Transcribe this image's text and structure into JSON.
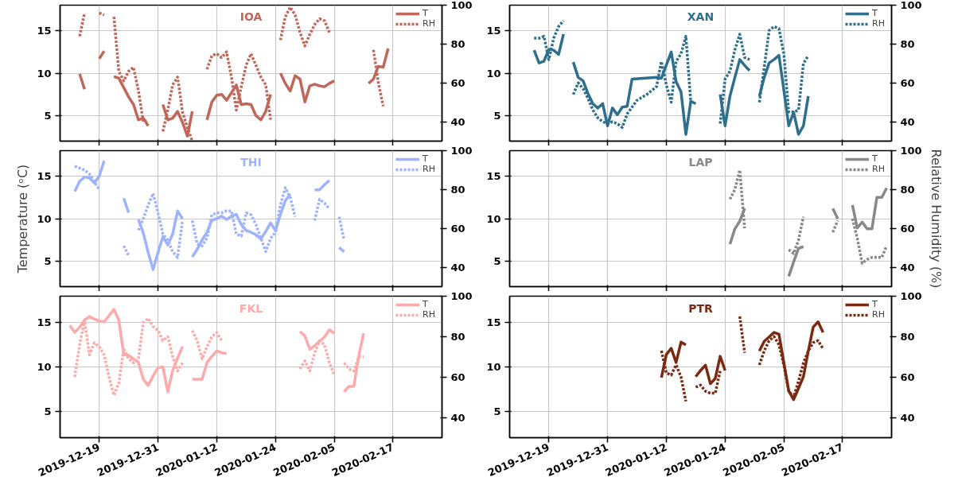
{
  "chart_data": [
    {
      "type": "line",
      "title": "IOA",
      "xlim": [
        "2019-12-11",
        "2020-02-27"
      ],
      "xticks": [
        "2019-12-19",
        "2019-12-31",
        "2020-01-12",
        "2020-01-24",
        "2020-02-05",
        "2020-02-17"
      ],
      "ylim": [
        2,
        18
      ],
      "yticks": [
        5,
        10,
        15
      ],
      "y2lim": [
        30,
        100
      ],
      "y2ticks": [
        40,
        60,
        80,
        100
      ],
      "grid": true,
      "legend": "top right",
      "tick_labels": "y",
      "series": [
        {
          "name": "T",
          "color": "#c0675a",
          "line_style": "solid",
          "x": [
            "2019-12-15",
            "2019-12-16",
            "2019-12-17",
            "2019-12-19",
            "2019-12-20",
            "2019-12-21",
            "2019-12-22",
            "2019-12-23",
            "2019-12-24",
            "2019-12-25",
            "2019-12-26",
            "2019-12-27",
            "2019-12-28",
            "2019-12-29",
            "2019-12-30",
            "2020-01-01",
            "2020-01-02",
            "2020-01-03",
            "2020-01-04",
            "2020-01-05",
            "2020-01-06",
            "2020-01-07",
            "2020-01-08",
            "2020-01-10",
            "2020-01-11",
            "2020-01-12",
            "2020-01-13",
            "2020-01-14",
            "2020-01-15",
            "2020-01-16",
            "2020-01-17",
            "2020-01-18",
            "2020-01-19",
            "2020-01-20",
            "2020-01-21",
            "2020-01-22",
            "2020-01-23",
            "2020-01-24",
            "2020-01-25",
            "2020-01-26",
            "2020-01-27",
            "2020-01-28",
            "2020-01-29",
            "2020-01-30",
            "2020-01-31",
            "2020-02-01",
            "2020-02-02",
            "2020-02-03",
            "2020-02-04",
            "2020-02-05",
            "2020-02-06",
            "2020-02-12",
            "2020-02-13",
            "2020-02-14",
            "2020-02-15",
            "2020-02-16"
          ],
          "values": [
            9.9,
            8.1,
            null,
            11.7,
            12.6,
            null,
            9.6,
            9.4,
            8.3,
            7.2,
            6.3,
            4.5,
            4.7,
            3.8,
            null,
            6.3,
            4.5,
            4.7,
            5.5,
            4.2,
            2.6,
            5.5,
            null,
            4.5,
            6.6,
            7.4,
            7.5,
            6.8,
            7.7,
            8.6,
            6.3,
            6.4,
            6.3,
            5.0,
            4.5,
            5.5,
            7.5,
            null,
            10,
            8.8,
            7.9,
            9.7,
            9.3,
            6.6,
            8.5,
            8.7,
            8.5,
            8.4,
            8.8,
            9.1,
            null,
            8.8,
            9.3,
            10.8,
            10.7,
            12.9
          ]
        },
        {
          "name": "RH",
          "color": "#c0675a",
          "line_style": "dotted",
          "axis": "y2",
          "x": [
            "2019-12-15",
            "2019-12-16",
            "2019-12-17",
            "2019-12-19",
            "2019-12-20",
            "2019-12-21",
            "2019-12-22",
            "2019-12-23",
            "2019-12-24",
            "2019-12-25",
            "2019-12-26",
            "2019-12-27",
            "2019-12-28",
            "2019-12-29",
            "2019-12-31",
            "2020-01-01",
            "2020-01-02",
            "2020-01-03",
            "2020-01-04",
            "2020-01-05",
            "2020-01-06",
            "2020-01-07",
            "2020-01-08",
            "2020-01-10",
            "2020-01-11",
            "2020-01-12",
            "2020-01-13",
            "2020-01-14",
            "2020-01-15",
            "2020-01-16",
            "2020-01-17",
            "2020-01-18",
            "2020-01-19",
            "2020-01-20",
            "2020-01-21",
            "2020-01-22",
            "2020-01-23",
            "2020-01-24",
            "2020-01-25",
            "2020-01-26",
            "2020-01-27",
            "2020-01-28",
            "2020-01-29",
            "2020-01-30",
            "2020-01-31",
            "2020-02-01",
            "2020-02-02",
            "2020-02-03",
            "2020-02-04",
            "2020-02-05",
            "2020-02-13",
            "2020-02-14",
            "2020-02-15"
          ],
          "values": [
            84,
            96,
            null,
            96,
            95,
            null,
            94,
            66,
            61,
            66,
            68,
            56,
            40,
            41,
            null,
            35,
            46,
            59,
            63,
            45,
            37,
            30,
            null,
            67,
            74,
            75,
            73,
            76,
            63,
            46,
            58,
            69,
            75,
            69,
            63,
            59,
            41,
            null,
            82,
            94,
            99,
            95,
            86,
            79,
            85,
            90,
            93,
            92,
            86,
            null,
            77,
            60,
            48
          ]
        }
      ]
    },
    {
      "type": "line",
      "title": "XAN",
      "xlim": [
        "2019-12-11",
        "2020-02-27"
      ],
      "xticks": [
        "2019-12-19",
        "2019-12-31",
        "2020-01-12",
        "2020-01-24",
        "2020-02-05",
        "2020-02-17"
      ],
      "ylim": [
        2,
        18
      ],
      "yticks": [
        5,
        10,
        15
      ],
      "y2lim": [
        30,
        100
      ],
      "y2ticks": [
        40,
        60,
        80,
        100
      ],
      "grid": true,
      "legend": "top right",
      "tick_labels": "y",
      "series": [
        {
          "name": "T",
          "color": "#2e6f8e",
          "line_style": "solid",
          "x": [
            "2019-12-16",
            "2019-12-17",
            "2019-12-18",
            "2019-12-19",
            "2019-12-20",
            "2019-12-21",
            "2019-12-22",
            "2019-12-23",
            "2019-12-24",
            "2019-12-25",
            "2019-12-26",
            "2019-12-27",
            "2019-12-28",
            "2019-12-29",
            "2019-12-30",
            "2019-12-31",
            "2020-01-01",
            "2020-01-02",
            "2020-01-03",
            "2020-01-04",
            "2020-01-05",
            "2020-01-10",
            "2020-01-11",
            "2020-01-13",
            "2020-01-14",
            "2020-01-15",
            "2020-01-16",
            "2020-01-17",
            "2020-01-18",
            "2020-01-19",
            "2020-01-23",
            "2020-01-24",
            "2020-01-25",
            "2020-01-26",
            "2020-01-27",
            "2020-01-28",
            "2020-01-29",
            "2020-01-30",
            "2020-01-31",
            "2020-02-01",
            "2020-02-02",
            "2020-02-03",
            "2020-02-04",
            "2020-02-05",
            "2020-02-06",
            "2020-02-07",
            "2020-02-08",
            "2020-02-09",
            "2020-02-10"
          ],
          "values": [
            12.7,
            11.2,
            11.4,
            12.8,
            12.7,
            12.2,
            14.6,
            null,
            11.3,
            9.5,
            9.1,
            7.6,
            6.4,
            5.9,
            6.4,
            3.8,
            5.9,
            5.1,
            6.0,
            6.1,
            9.3,
            9.5,
            9.4,
            12.5,
            9.0,
            7.8,
            2.8,
            6.7,
            6.4,
            null,
            7.5,
            3.8,
            7.3,
            9.5,
            11.6,
            10.9,
            10.3,
            null,
            7.3,
            9.5,
            11.2,
            11.6,
            12.1,
            8.0,
            3.8,
            5.4,
            2.8,
            3.8,
            7.3
          ]
        },
        {
          "name": "RH",
          "color": "#2e6f8e",
          "line_style": "dotted",
          "axis": "y2",
          "x": [
            "2019-12-16",
            "2019-12-17",
            "2019-12-18",
            "2019-12-19",
            "2019-12-20",
            "2019-12-21",
            "2019-12-22",
            "2019-12-23",
            "2019-12-24",
            "2019-12-25",
            "2019-12-26",
            "2019-12-27",
            "2019-12-28",
            "2019-12-29",
            "2019-12-30",
            "2019-12-31",
            "2020-01-01",
            "2020-01-02",
            "2020-01-03",
            "2020-01-04",
            "2020-01-06",
            "2020-01-08",
            "2020-01-10",
            "2020-01-11",
            "2020-01-12",
            "2020-01-13",
            "2020-01-14",
            "2020-01-15",
            "2020-01-16",
            "2020-01-17",
            "2020-01-20",
            "2020-01-23",
            "2020-01-24",
            "2020-01-25",
            "2020-01-26",
            "2020-01-27",
            "2020-01-28",
            "2020-01-29",
            "2020-01-30",
            "2020-01-31",
            "2020-02-01",
            "2020-02-02",
            "2020-02-03",
            "2020-02-04",
            "2020-02-05",
            "2020-02-06",
            "2020-02-07",
            "2020-02-08",
            "2020-02-09",
            "2020-02-10"
          ],
          "values": [
            83,
            83,
            84,
            72,
            83,
            89,
            92,
            null,
            54,
            60,
            57,
            52,
            46,
            42,
            40,
            39,
            40,
            39,
            37,
            44,
            51,
            54,
            58,
            71,
            59,
            50,
            71,
            75,
            84,
            50,
            null,
            39,
            62,
            66,
            77,
            85,
            73,
            72,
            null,
            50,
            68,
            87,
            89,
            88,
            75,
            45,
            45,
            46,
            70,
            74
          ]
        }
      ]
    },
    {
      "type": "line",
      "title": "THI",
      "xlim": [
        "2019-12-11",
        "2020-02-27"
      ],
      "xticks": [
        "2019-12-19",
        "2019-12-31",
        "2020-01-12",
        "2020-01-24",
        "2020-02-05",
        "2020-02-17"
      ],
      "ylim": [
        2,
        18
      ],
      "yticks": [
        5,
        10,
        15
      ],
      "y2lim": [
        30,
        100
      ],
      "y2ticks": [
        40,
        60,
        80,
        100
      ],
      "grid": true,
      "legend": "top right",
      "tick_labels": "y",
      "ylabel": "Temperature (ᵒC)",
      "series": [
        {
          "name": "T",
          "color": "#9db3ff",
          "line_style": "solid",
          "x": [
            "2019-12-14",
            "2019-12-15",
            "2019-12-16",
            "2019-12-17",
            "2019-12-18",
            "2019-12-19",
            "2019-12-20",
            "2019-12-21",
            "2019-12-24",
            "2019-12-25",
            "2019-12-26",
            "2019-12-27",
            "2019-12-28",
            "2019-12-29",
            "2019-12-30",
            "2019-12-31",
            "2020-01-01",
            "2020-01-02",
            "2020-01-03",
            "2020-01-04",
            "2020-01-05",
            "2020-01-06",
            "2020-01-07",
            "2020-01-08",
            "2020-01-09",
            "2020-01-10",
            "2020-01-11",
            "2020-01-12",
            "2020-01-13",
            "2020-01-14",
            "2020-01-15",
            "2020-01-16",
            "2020-01-17",
            "2020-01-18",
            "2020-01-19",
            "2020-01-20",
            "2020-01-21",
            "2020-01-22",
            "2020-01-23",
            "2020-01-24",
            "2020-01-25",
            "2020-01-26",
            "2020-01-27",
            "2020-01-28",
            "2020-02-01",
            "2020-02-02",
            "2020-02-03",
            "2020-02-04",
            "2020-02-05",
            "2020-02-06",
            "2020-02-07"
          ],
          "values": [
            13.2,
            14.4,
            14.9,
            14.8,
            14.2,
            15.0,
            16.8,
            null,
            12.4,
            10.7,
            null,
            9.9,
            8.3,
            6.0,
            4.0,
            6.0,
            7.9,
            6.9,
            8.2,
            10.9,
            10.0,
            null,
            5.5,
            6.4,
            7.5,
            8.4,
            9.8,
            10.0,
            10.3,
            9.9,
            10.3,
            10.5,
            9.3,
            8.6,
            8.4,
            8.1,
            7.6,
            8.5,
            9.5,
            8.6,
            10.5,
            12.1,
            12.9,
            null,
            13.4,
            13.4,
            14.0,
            14.5,
            null,
            6.6,
            6.1
          ]
        },
        {
          "name": "RH",
          "color": "#9db3ff",
          "line_style": "dotted",
          "axis": "y2",
          "x": [
            "2019-12-14",
            "2019-12-15",
            "2019-12-16",
            "2019-12-17",
            "2019-12-18",
            "2019-12-19",
            "2019-12-21",
            "2019-12-24",
            "2019-12-25",
            "2019-12-26",
            "2019-12-27",
            "2019-12-28",
            "2019-12-29",
            "2019-12-30",
            "2019-12-31",
            "2020-01-01",
            "2020-01-02",
            "2020-01-03",
            "2020-01-04",
            "2020-01-05",
            "2020-01-06",
            "2020-01-07",
            "2020-01-08",
            "2020-01-09",
            "2020-01-10",
            "2020-01-11",
            "2020-01-12",
            "2020-01-13",
            "2020-01-14",
            "2020-01-15",
            "2020-01-16",
            "2020-01-17",
            "2020-01-18",
            "2020-01-19",
            "2020-01-20",
            "2020-01-21",
            "2020-01-22",
            "2020-01-23",
            "2020-01-24",
            "2020-01-25",
            "2020-01-26",
            "2020-01-27",
            "2020-01-28",
            "2020-01-31",
            "2020-02-01",
            "2020-02-02",
            "2020-02-03",
            "2020-02-04",
            "2020-02-05",
            "2020-02-06",
            "2020-02-07"
          ],
          "values": [
            92,
            91,
            90,
            88,
            84,
            80,
            null,
            51,
            46,
            null,
            59,
            65,
            72,
            78,
            68,
            57,
            54,
            48,
            45,
            64,
            null,
            64,
            52,
            51,
            55,
            67,
            68,
            68,
            69,
            69,
            57,
            56,
            68,
            67,
            62,
            55,
            48,
            55,
            58,
            72,
            81,
            76,
            66,
            null,
            64,
            75,
            73,
            70,
            null,
            66,
            54
          ]
        }
      ]
    },
    {
      "type": "line",
      "title": "LAP",
      "xlim": [
        "2019-12-11",
        "2020-02-27"
      ],
      "xticks": [
        "2019-12-19",
        "2019-12-31",
        "2020-01-12",
        "2020-01-24",
        "2020-02-05",
        "2020-02-17"
      ],
      "ylim": [
        2,
        18
      ],
      "yticks": [
        5,
        10,
        15
      ],
      "y2lim": [
        30,
        100
      ],
      "y2ticks": [
        40,
        60,
        80,
        100
      ],
      "grid": true,
      "legend": "top right",
      "tick_labels": "y",
      "y2label": "Relative Humidity (%)",
      "series": [
        {
          "name": "T",
          "color": "#888888",
          "line_style": "solid",
          "x": [
            "2020-01-25",
            "2020-01-26",
            "2020-01-27",
            "2020-01-28",
            "2020-02-01",
            "2020-02-06",
            "2020-02-07",
            "2020-02-08",
            "2020-02-09",
            "2020-02-12",
            "2020-02-15",
            "2020-02-16",
            "2020-02-17",
            "2020-02-19",
            "2020-02-20",
            "2020-02-21",
            "2020-02-22",
            "2020-02-23",
            "2020-02-24",
            "2020-02-25",
            "2020-02-26"
          ],
          "values": [
            7.0,
            8.8,
            9.7,
            11.2,
            null,
            3.2,
            4.9,
            6.5,
            6.7,
            null,
            11.2,
            10.0,
            null,
            11.6,
            8.9,
            9.6,
            8.8,
            8.8,
            12.5,
            12.5,
            13.6
          ]
        },
        {
          "name": "RH",
          "color": "#888888",
          "line_style": "dotted",
          "axis": "y2",
          "x": [
            "2020-01-25",
            "2020-01-26",
            "2020-01-27",
            "2020-01-28",
            "2020-02-01",
            "2020-02-06",
            "2020-02-07",
            "2020-02-08",
            "2020-02-09",
            "2020-02-12",
            "2020-02-15",
            "2020-02-16",
            "2020-02-17",
            "2020-02-19",
            "2020-02-20",
            "2020-02-21",
            "2020-02-22",
            "2020-02-23",
            "2020-02-24",
            "2020-02-25",
            "2020-02-26"
          ],
          "values": [
            75,
            80,
            90,
            60,
            null,
            49,
            47,
            54,
            66,
            null,
            58,
            64,
            null,
            65,
            55,
            42,
            44,
            45,
            45,
            45,
            51
          ]
        }
      ]
    },
    {
      "type": "line",
      "title": "FKL",
      "xlim": [
        "2019-12-11",
        "2020-02-27"
      ],
      "xticks": [
        "2019-12-19",
        "2019-12-31",
        "2020-01-12",
        "2020-01-24",
        "2020-02-05",
        "2020-02-17"
      ],
      "ylim": [
        2,
        18
      ],
      "yticks": [
        5,
        10,
        15
      ],
      "y2lim": [
        30,
        100
      ],
      "y2ticks": [
        40,
        60,
        80,
        100
      ],
      "grid": true,
      "legend": "top right",
      "series": [
        {
          "name": "T",
          "color": "#ffaaaa",
          "line_style": "solid",
          "x": [
            "2019-12-13",
            "2019-12-14",
            "2019-12-15",
            "2019-12-16",
            "2019-12-17",
            "2019-12-18",
            "2019-12-19",
            "2019-12-20",
            "2019-12-21",
            "2019-12-22",
            "2019-12-23",
            "2019-12-24",
            "2019-12-25",
            "2019-12-26",
            "2019-12-27",
            "2019-12-28",
            "2019-12-29",
            "2019-12-30",
            "2019-12-31",
            "2020-01-01",
            "2020-01-02",
            "2020-01-03",
            "2020-01-04",
            "2020-01-05",
            "2020-01-06",
            "2020-01-07",
            "2020-01-08",
            "2020-01-09",
            "2020-01-10",
            "2020-01-11",
            "2020-01-12",
            "2020-01-13",
            "2020-01-14",
            "2020-01-15",
            "2020-01-29",
            "2020-01-30",
            "2020-01-31",
            "2020-02-01",
            "2020-02-02",
            "2020-02-03",
            "2020-02-04",
            "2020-02-05",
            "2020-02-06",
            "2020-02-07",
            "2020-02-08",
            "2020-02-09",
            "2020-02-10",
            "2020-02-11"
          ],
          "values": [
            14.7,
            13.9,
            14.5,
            15.3,
            15.7,
            15.4,
            15.2,
            15.1,
            15.8,
            16.5,
            15.3,
            11.4,
            11.3,
            10.9,
            10.5,
            8.6,
            7.9,
            9.0,
            9.9,
            10.0,
            7.2,
            9.6,
            11.0,
            12.3,
            null,
            8.6,
            8.6,
            8.6,
            10.5,
            11.2,
            11.8,
            11.6,
            11.5,
            null,
            14.0,
            13.5,
            12.0,
            12.4,
            12.9,
            13.4,
            14.2,
            13.8,
            null,
            7.2,
            7.8,
            7.8,
            11.3,
            13.8
          ]
        },
        {
          "name": "RH",
          "color": "#ffaaaa",
          "line_style": "dotted",
          "axis": "y2",
          "x": [
            "2019-12-14",
            "2019-12-15",
            "2019-12-16",
            "2019-12-17",
            "2019-12-18",
            "2019-12-19",
            "2019-12-20",
            "2019-12-21",
            "2019-12-22",
            "2019-12-23",
            "2019-12-24",
            "2019-12-25",
            "2019-12-26",
            "2019-12-27",
            "2019-12-28",
            "2019-12-29",
            "2019-12-30",
            "2019-12-31",
            "2020-01-01",
            "2020-01-02",
            "2020-01-03",
            "2020-01-04",
            "2020-01-05",
            "2020-01-06",
            "2020-01-07",
            "2020-01-08",
            "2020-01-09",
            "2020-01-10",
            "2020-01-11",
            "2020-01-12",
            "2020-01-13",
            "2020-01-14",
            "2020-01-29",
            "2020-01-30",
            "2020-01-31",
            "2020-02-01",
            "2020-02-02",
            "2020-02-03",
            "2020-02-04",
            "2020-02-05",
            "2020-02-06",
            "2020-02-07",
            "2020-02-08",
            "2020-02-09",
            "2020-02-10",
            "2020-02-11"
          ],
          "values": [
            60,
            76,
            88,
            71,
            77,
            75,
            71,
            60,
            51,
            57,
            74,
            69,
            67,
            69,
            87,
            89,
            85,
            83,
            78,
            80,
            70,
            63,
            67,
            null,
            83,
            78,
            69,
            75,
            80,
            82,
            78,
            null,
            64,
            68,
            63,
            72,
            78,
            76,
            67,
            61,
            null,
            67,
            64,
            63,
            70,
            70
          ]
        }
      ]
    },
    {
      "type": "line",
      "title": "PTR",
      "xlim": [
        "2019-12-11",
        "2020-02-27"
      ],
      "xticks": [
        "2019-12-19",
        "2019-12-31",
        "2020-01-12",
        "2020-01-24",
        "2020-02-05",
        "2020-02-17"
      ],
      "ylim": [
        2,
        18
      ],
      "yticks": [
        5,
        10,
        15
      ],
      "y2lim": [
        30,
        100
      ],
      "y2ticks": [
        40,
        60,
        80,
        100
      ],
      "grid": true,
      "legend": "top right",
      "series": [
        {
          "name": "T",
          "color": "#7a2a10",
          "line_style": "solid",
          "x": [
            "2020-01-11",
            "2020-01-12",
            "2020-01-13",
            "2020-01-14",
            "2020-01-15",
            "2020-01-16",
            "2020-01-17",
            "2020-01-18",
            "2020-01-19",
            "2020-01-20",
            "2020-01-21",
            "2020-01-22",
            "2020-01-23",
            "2020-01-24",
            "2020-01-25",
            "2020-01-31",
            "2020-02-01",
            "2020-02-02",
            "2020-02-03",
            "2020-02-04",
            "2020-02-05",
            "2020-02-06",
            "2020-02-07",
            "2020-02-08",
            "2020-02-09",
            "2020-02-10",
            "2020-02-11",
            "2020-02-12",
            "2020-02-13"
          ],
          "values": [
            8.8,
            11.4,
            12.1,
            10.5,
            12.8,
            12.5,
            null,
            8.9,
            9.6,
            10.2,
            8.1,
            8.7,
            11.2,
            9.6,
            null,
            11.8,
            12.9,
            13.4,
            13.9,
            13.7,
            10.5,
            7.3,
            6.3,
            7.6,
            8.9,
            11.8,
            14.5,
            15.1,
            13.9
          ]
        },
        {
          "name": "RH",
          "color": "#7a2a10",
          "line_style": "dotted",
          "axis": "y2",
          "x": [
            "2020-01-11",
            "2020-01-12",
            "2020-01-13",
            "2020-01-14",
            "2020-01-15",
            "2020-01-16",
            "2020-01-17",
            "2020-01-18",
            "2020-01-19",
            "2020-01-20",
            "2020-01-21",
            "2020-01-22",
            "2020-01-23",
            "2020-01-25",
            "2020-01-27",
            "2020-01-28",
            "2020-01-29",
            "2020-01-31",
            "2020-02-01",
            "2020-02-02",
            "2020-02-03",
            "2020-02-04",
            "2020-02-05",
            "2020-02-06",
            "2020-02-07",
            "2020-02-08",
            "2020-02-09",
            "2020-02-10",
            "2020-02-11",
            "2020-02-12",
            "2020-02-13"
          ],
          "values": [
            73,
            62,
            61,
            66,
            60,
            48,
            null,
            55,
            56,
            53,
            52,
            52,
            63,
            null,
            90,
            72,
            null,
            66,
            73,
            78,
            80,
            76,
            66,
            53,
            50,
            58,
            67,
            73,
            77,
            78,
            74
          ]
        }
      ]
    }
  ]
}
